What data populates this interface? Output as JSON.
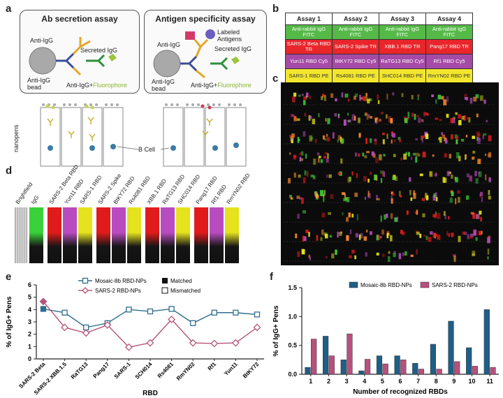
{
  "panel_labels": {
    "a": "a",
    "b": "b",
    "c": "c",
    "d": "d",
    "e": "e",
    "f": "f"
  },
  "panel_a": {
    "left": {
      "title": "Ab secretion assay",
      "anti_igg": "Anti-IgG",
      "secreted": "Secreted IgG",
      "bead": "Anti-IgG bead",
      "fluor_prefix": "Anti-IgG+",
      "fluor": "Fluorophore"
    },
    "right": {
      "title": "Antigen specificity assay",
      "anti_igg": "Anti-IgG",
      "labeled": "Labeled Antigens",
      "secreted": "Secreted IgG",
      "bead": "Anti-IgG bead",
      "fluor_prefix": "Anti-IgG+",
      "fluor": "Fluorophore"
    },
    "nanopens": "nanopens",
    "bcell": "B Cell"
  },
  "panel_b": {
    "headers": [
      "Assay 1",
      "Assay 2",
      "Assay 3",
      "Assay 4"
    ],
    "rows": [
      {
        "color": "#55b947",
        "cells": [
          "Anti-rabbit IgG FITC",
          "Anti-rabbit IgG FITC",
          "Anti-rabbit IgG FITC",
          "Anti-rabbit IgG FITC"
        ]
      },
      {
        "color": "#e8262b",
        "cells": [
          "SARS-2 Beta RBD TR",
          "SARS-2 Spike TR",
          "XBB.1 RBD TR",
          "Pang17 RBD TR"
        ]
      },
      {
        "color": "#a54aa6",
        "cells": [
          "Yun11 RBD Cy5",
          "BtKY72 RBD Cy5",
          "RaTG13 RBD Cy5",
          "Rf1 RBD Cy5"
        ]
      },
      {
        "color": "#f2e62e",
        "cells": [
          "SARS-1 RBD PE",
          "Rs4081 RBD PE",
          "SHC014 RBD PE",
          "RmYN02 RBD PE"
        ]
      }
    ]
  },
  "panel_d": {
    "labels": [
      "Brightfield",
      "IgG",
      "SARS-2 Beta RBD",
      "Yun11 RBD",
      "SARS-1 RBD",
      "SARS-2 Spike",
      "BtKY72 RBD",
      "Rs4081 RBD",
      "XBB.1 RBD",
      "RaTG13 RBD",
      "SHC014 RBD",
      "Pang17 RBD",
      "Rf1 RBD",
      "RmYN02 RBD"
    ],
    "colors": [
      "#bbbbbb",
      "#3ad13a",
      "#e11b1b",
      "#b94bc0",
      "#e5e21e",
      "#e11b1b",
      "#b94bc0",
      "#e5e21e",
      "#e11b1b",
      "#b94bc0",
      "#e5e21e",
      "#e11b1b",
      "#b94bc0",
      "#e5e21e"
    ]
  },
  "chart_data": [
    {
      "type": "line",
      "panel": "e",
      "categories": [
        "SARS-2 Beta",
        "SARS-2 XBB.1.5",
        "RaTG13",
        "Pang17",
        "SARS-1",
        "SCH014",
        "Rs4081",
        "RmYN02",
        "Rf1",
        "Yun11",
        "BtKY72"
      ],
      "series": [
        {
          "name": "Mosaic-8b RBD-NPs",
          "color": "#2f6e8e",
          "values": [
            4.05,
            3.75,
            2.55,
            2.9,
            4.0,
            3.85,
            4.05,
            2.9,
            3.75,
            3.75,
            3.6
          ],
          "matched": [
            true,
            false,
            false,
            false,
            false,
            false,
            false,
            false,
            false,
            false,
            false
          ]
        },
        {
          "name": "SARS-2 RBD-NPs",
          "color": "#b5557a",
          "values": [
            4.65,
            2.55,
            2.1,
            2.75,
            0.95,
            1.3,
            3.2,
            1.3,
            1.25,
            1.3,
            2.55
          ],
          "matched": [
            true,
            false,
            false,
            false,
            false,
            false,
            false,
            false,
            false,
            false,
            false
          ]
        }
      ],
      "legend_extra": [
        "Matched",
        "Mismatched"
      ],
      "xlabel": "RBD",
      "ylabel": "% of IgG+ Pens",
      "ylim": [
        0,
        6
      ],
      "yticks": [
        "0",
        "1",
        "2",
        "3",
        "4",
        "5",
        "6"
      ]
    },
    {
      "type": "bar",
      "panel": "f",
      "categories": [
        "1",
        "2",
        "3",
        "4",
        "5",
        "6",
        "7",
        "8",
        "9",
        "10",
        "11"
      ],
      "series": [
        {
          "name": "Mosaic-8b RBD-NPs",
          "color": "#1f5e86",
          "values": [
            0.12,
            0.66,
            0.25,
            0.06,
            0.32,
            0.32,
            0.19,
            0.52,
            0.92,
            0.46,
            1.12
          ]
        },
        {
          "name": "SARS-2 RBD-NPs",
          "color": "#b8507c",
          "values": [
            0.61,
            0.32,
            0.7,
            0.26,
            0.18,
            0.25,
            0.09,
            0.09,
            0.22,
            0.14,
            0.12
          ]
        }
      ],
      "xlabel": "Number of recognized RBDs",
      "ylabel": "% of IgG+ Pens",
      "ylim": [
        0,
        1.5
      ],
      "yticks": [
        "0.0",
        "0.5",
        "1.0",
        "1.5"
      ]
    }
  ]
}
